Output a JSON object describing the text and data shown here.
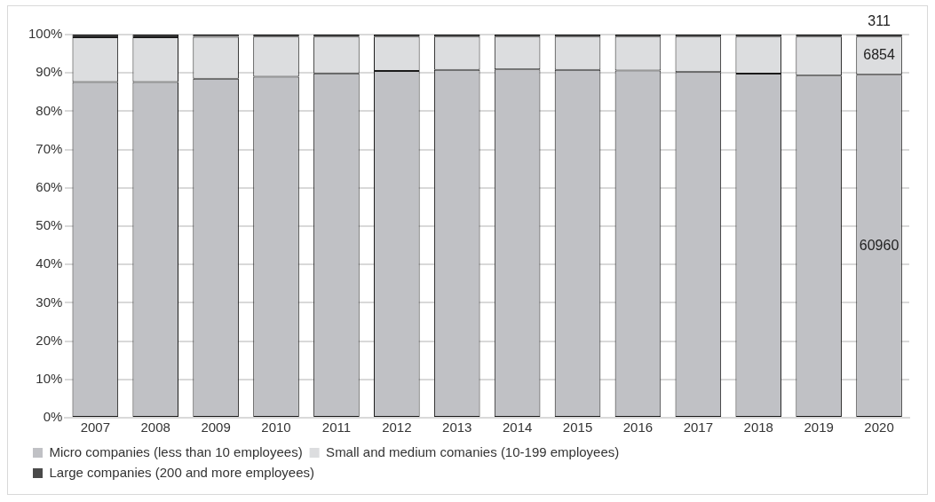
{
  "chart_data": {
    "type": "bar",
    "stacked": true,
    "categories": [
      "2007",
      "2008",
      "2009",
      "2010",
      "2011",
      "2012",
      "2013",
      "2014",
      "2015",
      "2016",
      "2017",
      "2018",
      "2019",
      "2020"
    ],
    "series": [
      {
        "name": "Micro companies (less than 10 employees)",
        "color": "#c0c1c5",
        "values": [
          87.6,
          87.6,
          88.5,
          89.0,
          89.9,
          90.5,
          90.8,
          90.9,
          90.8,
          90.6,
          90.2,
          89.8,
          89.3,
          89.5
        ]
      },
      {
        "name": "Small and medium comanies (10-199 employees)",
        "color": "#dcdddf",
        "values": [
          11.7,
          11.7,
          10.9,
          10.5,
          9.6,
          9.0,
          8.7,
          8.6,
          8.7,
          8.9,
          9.3,
          9.7,
          10.2,
          10.0
        ]
      },
      {
        "name": "Large companies (200 and more employees)",
        "color": "#4a4a4a",
        "values": [
          0.7,
          0.7,
          0.6,
          0.5,
          0.5,
          0.5,
          0.5,
          0.5,
          0.5,
          0.5,
          0.5,
          0.5,
          0.5,
          0.5
        ]
      }
    ],
    "ylim": [
      0,
      100
    ],
    "yticks": [
      {
        "value": 0,
        "label": "0%"
      },
      {
        "value": 10,
        "label": "10%"
      },
      {
        "value": 20,
        "label": "20%"
      },
      {
        "value": 30,
        "label": "30%"
      },
      {
        "value": 40,
        "label": "40%"
      },
      {
        "value": 50,
        "label": "50%"
      },
      {
        "value": 60,
        "label": "60%"
      },
      {
        "value": 70,
        "label": "70%"
      },
      {
        "value": 80,
        "label": "80%"
      },
      {
        "value": 90,
        "label": "90%"
      },
      {
        "value": 100,
        "label": "100%"
      }
    ],
    "grid": "y",
    "legend": "bottom",
    "annotations": [
      "60960",
      "6854",
      "311"
    ]
  }
}
